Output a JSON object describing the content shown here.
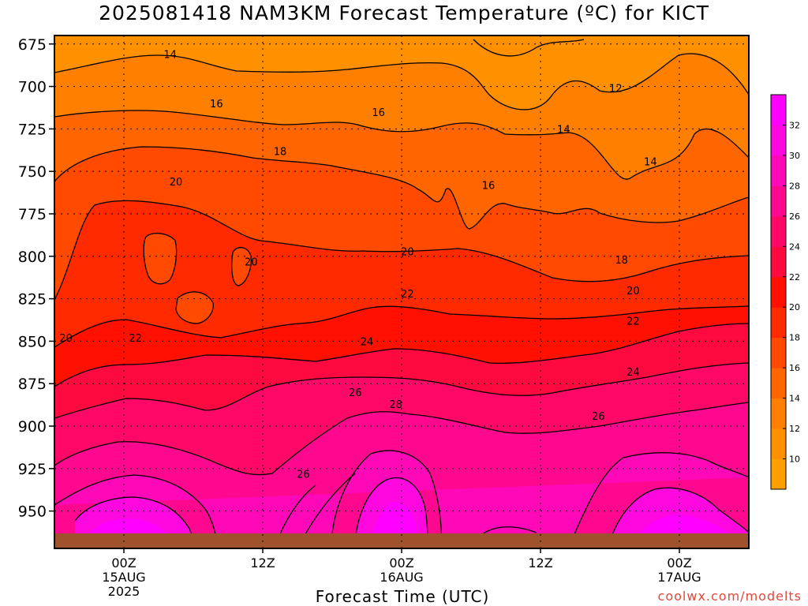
{
  "title": "2025081418 NAM3KM Forecast Temperature (ºC) for KICT",
  "credit": "coolwx.com/modelts",
  "chart_data": {
    "type": "heatmap",
    "title": "2025081418 NAM3KM Forecast Temperature (ºC) for KICT",
    "xlabel": "Forecast Time (UTC)",
    "ylabel": "",
    "x_ticks": [
      {
        "hours": 6,
        "lines": [
          "00Z",
          "15AUG",
          "2025"
        ]
      },
      {
        "hours": 18,
        "lines": [
          "12Z"
        ]
      },
      {
        "hours": 30,
        "lines": [
          "00Z",
          "16AUG"
        ]
      },
      {
        "hours": 42,
        "lines": [
          "12Z"
        ]
      },
      {
        "hours": 54,
        "lines": [
          "00Z",
          "17AUG"
        ]
      }
    ],
    "xlim_hours": [
      0,
      60
    ],
    "y_ticks": [
      675,
      700,
      725,
      750,
      775,
      800,
      825,
      850,
      875,
      900,
      925,
      950
    ],
    "ylim": [
      670,
      972
    ],
    "y_axis": "pressure (hPa), increasing downward",
    "grid": true,
    "colorbar": {
      "labels": [
        10,
        12,
        14,
        16,
        18,
        20,
        22,
        24,
        26,
        28,
        30,
        32
      ],
      "colors": [
        "#ffa000",
        "#ff9000",
        "#ff7f00",
        "#ff6500",
        "#ff4a00",
        "#ff2a00",
        "#ff1000",
        "#ff0a40",
        "#ff0868",
        "#ff0890",
        "#ff08b8",
        "#ff08e0",
        "#ff00ff"
      ]
    },
    "contour_labels": [
      {
        "value": 14,
        "x": 10,
        "p": 681
      },
      {
        "value": 16,
        "x": 14,
        "p": 710
      },
      {
        "value": 18,
        "x": 19.5,
        "p": 738
      },
      {
        "value": 20,
        "x": 10.5,
        "p": 756
      },
      {
        "value": 20,
        "x": 17,
        "p": 803
      },
      {
        "value": 20,
        "x": 1,
        "p": 848
      },
      {
        "value": 22,
        "x": 7,
        "p": 848
      },
      {
        "value": 16,
        "x": 28,
        "p": 715
      },
      {
        "value": 20,
        "x": 30.5,
        "p": 797
      },
      {
        "value": 22,
        "x": 30.5,
        "p": 822
      },
      {
        "value": 24,
        "x": 27,
        "p": 850
      },
      {
        "value": 26,
        "x": 26,
        "p": 880
      },
      {
        "value": 28,
        "x": 29.5,
        "p": 887
      },
      {
        "value": 26,
        "x": 21.5,
        "p": 928
      },
      {
        "value": 16,
        "x": 37.5,
        "p": 758
      },
      {
        "value": 14,
        "x": 44,
        "p": 725
      },
      {
        "value": 12,
        "x": 48.5,
        "p": 701
      },
      {
        "value": 14,
        "x": 51.5,
        "p": 744
      },
      {
        "value": 18,
        "x": 49,
        "p": 802
      },
      {
        "value": 20,
        "x": 50,
        "p": 820
      },
      {
        "value": 22,
        "x": 50,
        "p": 838
      },
      {
        "value": 24,
        "x": 50,
        "p": 868
      },
      {
        "value": 26,
        "x": 47,
        "p": 894
      }
    ],
    "ground": "below ~966 hPa (surface)"
  }
}
